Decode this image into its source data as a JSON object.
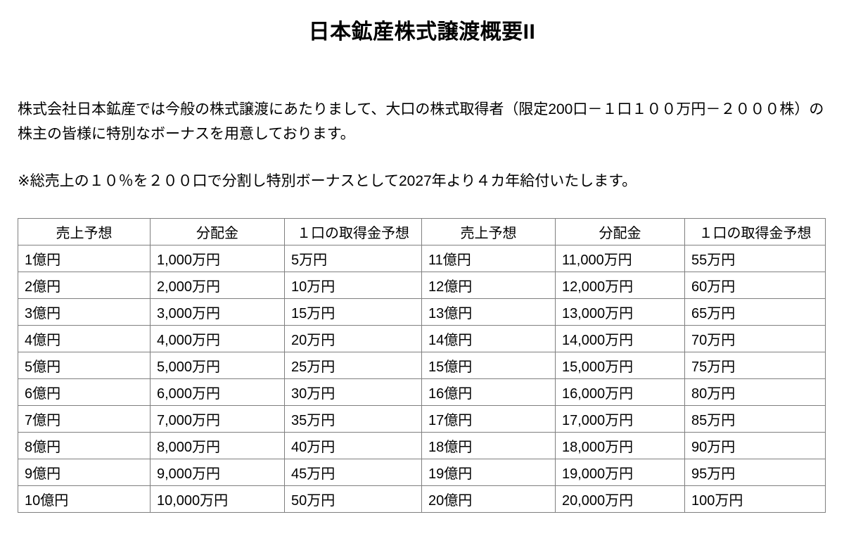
{
  "page": {
    "title": "日本鉱産株式譲渡概要II"
  },
  "paragraphs": {
    "intro": "株式会社日本鉱産では今般の株式譲渡にあたりまして、大口の株式取得者（限定200口－１口１００万円－２０００株）の株主の皆様に特別なボーナスを用意しております。",
    "note": "※総売上の１０％を２００口で分割し特別ボーナスとして2027年より４カ年給付いたします。"
  },
  "table": {
    "headers": [
      "売上予想",
      "分配金",
      "１口の取得金予想",
      "売上予想",
      "分配金",
      "１口の取得金予想"
    ],
    "rows": [
      [
        "1億円",
        "1,000万円",
        "5万円",
        "11億円",
        "11,000万円",
        "55万円"
      ],
      [
        "2億円",
        "2,000万円",
        "10万円",
        "12億円",
        "12,000万円",
        "60万円"
      ],
      [
        "3億円",
        "3,000万円",
        "15万円",
        "13億円",
        "13,000万円",
        "65万円"
      ],
      [
        "4億円",
        "4,000万円",
        "20万円",
        "14億円",
        "14,000万円",
        "70万円"
      ],
      [
        "5億円",
        "5,000万円",
        "25万円",
        "15億円",
        "15,000万円",
        "75万円"
      ],
      [
        "6億円",
        "6,000万円",
        "30万円",
        "16億円",
        "16,000万円",
        "80万円"
      ],
      [
        "7億円",
        "7,000万円",
        "35万円",
        "17億円",
        "17,000万円",
        "85万円"
      ],
      [
        "8億円",
        "8,000万円",
        "40万円",
        "18億円",
        "18,000万円",
        "90万円"
      ],
      [
        "9億円",
        "9,000万円",
        "45万円",
        "19億円",
        "19,000万円",
        "95万円"
      ],
      [
        "10億円",
        "10,000万円",
        "50万円",
        "20億円",
        "20,000万円",
        "100万円"
      ]
    ]
  }
}
